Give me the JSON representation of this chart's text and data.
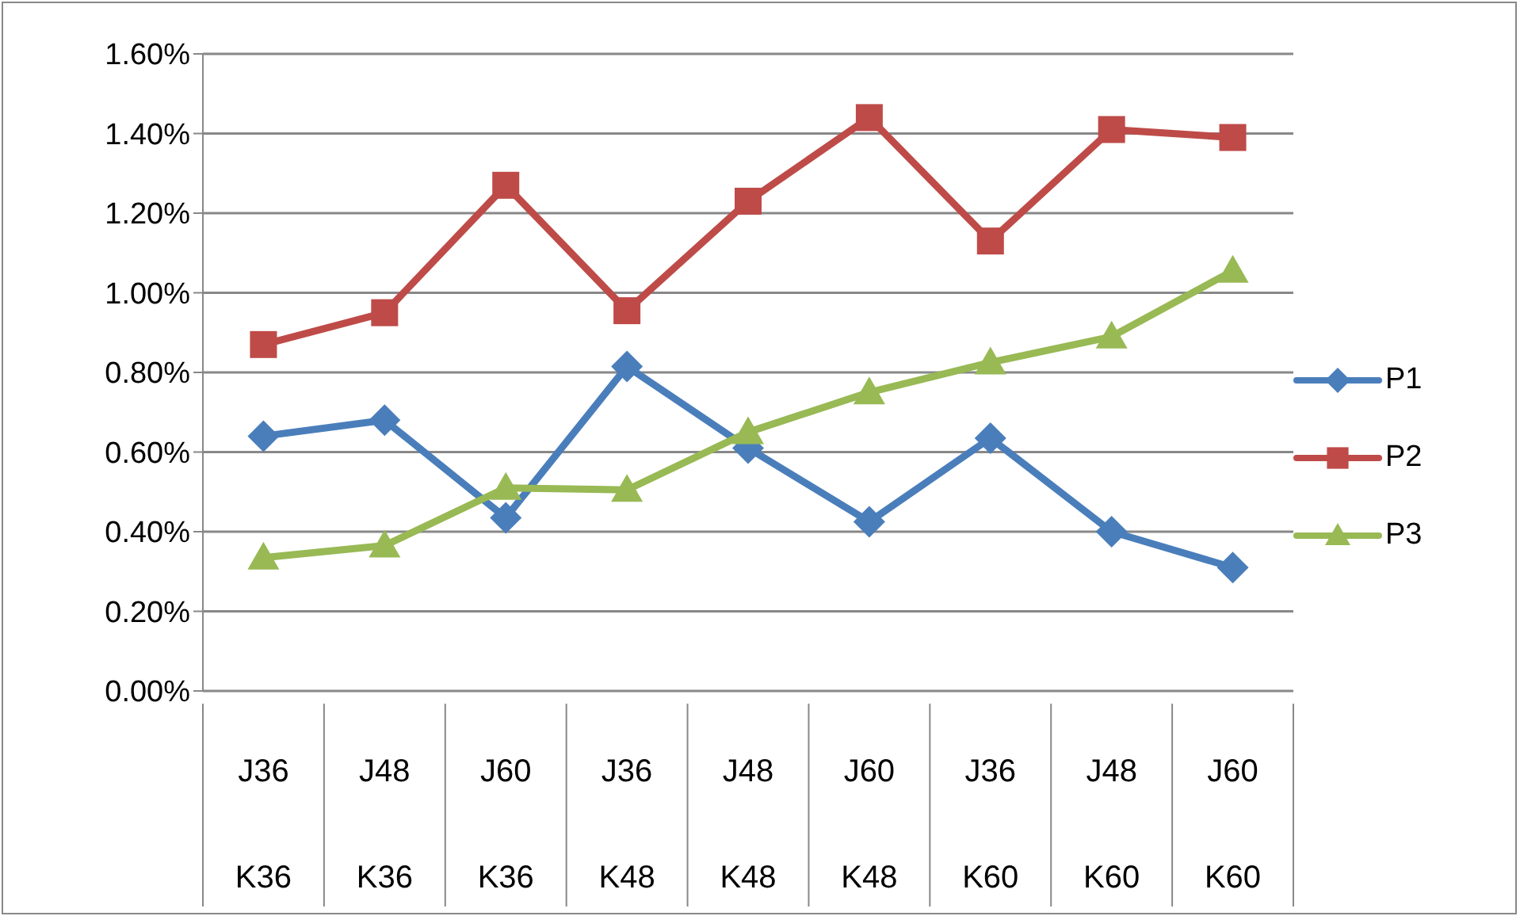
{
  "chart_data": {
    "type": "line",
    "categories": [
      "J36\nK36",
      "J48\nK36",
      "J60\nK36",
      "J36\nK48",
      "J48\nK48",
      "J60\nK48",
      "J36\nK60",
      "J48\nK60",
      "J60\nK60"
    ],
    "series": [
      {
        "name": "P1",
        "color": "#4a7ebb",
        "marker": "diamond",
        "values": [
          0.64,
          0.68,
          0.435,
          0.815,
          0.61,
          0.425,
          0.635,
          0.4,
          0.31
        ]
      },
      {
        "name": "P2",
        "color": "#be4b48",
        "marker": "square",
        "values": [
          0.87,
          0.95,
          1.27,
          0.955,
          1.23,
          1.44,
          1.13,
          1.41,
          1.39
        ]
      },
      {
        "name": "P3",
        "color": "#98b954",
        "marker": "triangle",
        "values": [
          0.335,
          0.365,
          0.51,
          0.505,
          0.65,
          0.75,
          0.825,
          0.89,
          1.055
        ]
      }
    ],
    "ylim": [
      0,
      1.6
    ],
    "yticks": [
      {
        "value": 0,
        "label": "0.00%"
      },
      {
        "value": 0.2,
        "label": "0.20%"
      },
      {
        "value": 0.4,
        "label": "0.40%"
      },
      {
        "value": 0.6,
        "label": "0.60%"
      },
      {
        "value": 0.8,
        "label": "0.80%"
      },
      {
        "value": 1,
        "label": "1.00%"
      },
      {
        "value": 1.2,
        "label": "1.20%"
      },
      {
        "value": 1.4,
        "label": "1.40%"
      },
      {
        "value": 1.6,
        "label": "1.60%"
      }
    ],
    "grid": "y",
    "legend": "right"
  }
}
